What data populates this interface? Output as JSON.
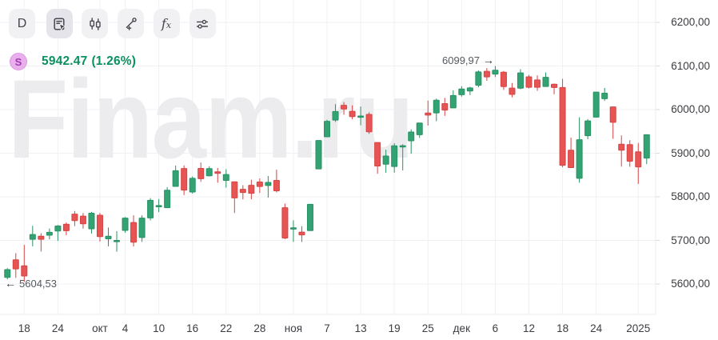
{
  "toolbar": {
    "timeframe_label": "D",
    "fx_label": "f",
    "fx_sub": "x",
    "buttons": [
      "timeframe-daily",
      "object-tree",
      "chart-style-candles",
      "draw-trendline",
      "indicators-fx",
      "chart-settings"
    ]
  },
  "quote": {
    "symbol_badge": "S",
    "price": "5942.47",
    "change": "(1.26%)",
    "price_color": "#0a9160",
    "badge_color": "#e9aeec"
  },
  "watermark": "Finam.ru",
  "chart_data": {
    "type": "candlestick",
    "title": "S daily candlestick chart",
    "last_price": 5942.47,
    "change_percent": 1.26,
    "ylim": [
      5530,
      6250
    ],
    "grid": true,
    "y_axis_side": "right",
    "colors": {
      "up_fill": "#34a374",
      "up_border": "#289263",
      "down_fill": "#e75454",
      "down_border": "#d64444",
      "grid": "#f1f1f4",
      "border": "#ececef",
      "tick": "#dadade"
    },
    "high_marker": {
      "label": "6099,97",
      "arrow": "→",
      "value": 6099.97
    },
    "low_marker": {
      "label": "5604,53",
      "arrow": "←",
      "value": 5604.53
    },
    "y_ticks": [
      {
        "value": 6200,
        "label": "6200,00"
      },
      {
        "value": 6100,
        "label": "6100,00"
      },
      {
        "value": 6000,
        "label": "6000,00"
      },
      {
        "value": 5900,
        "label": "5900,00"
      },
      {
        "value": 5800,
        "label": "5800,00"
      },
      {
        "value": 5700,
        "label": "5700,00"
      },
      {
        "value": 5600,
        "label": "5600,00"
      }
    ],
    "x_ticks": [
      {
        "index": 2,
        "label": "18"
      },
      {
        "index": 6,
        "label": "24"
      },
      {
        "index": 11,
        "label": "окт"
      },
      {
        "index": 14,
        "label": "4"
      },
      {
        "index": 18,
        "label": "10"
      },
      {
        "index": 22,
        "label": "16"
      },
      {
        "index": 26,
        "label": "22"
      },
      {
        "index": 30,
        "label": "28"
      },
      {
        "index": 34,
        "label": "ноя"
      },
      {
        "index": 38,
        "label": "7"
      },
      {
        "index": 42,
        "label": "13"
      },
      {
        "index": 46,
        "label": "19"
      },
      {
        "index": 50,
        "label": "25"
      },
      {
        "index": 54,
        "label": "дек"
      },
      {
        "index": 58,
        "label": "6"
      },
      {
        "index": 62,
        "label": "12"
      },
      {
        "index": 66,
        "label": "18"
      },
      {
        "index": 70,
        "label": "24"
      },
      {
        "index": 75,
        "label": "2025"
      }
    ],
    "candles": [
      [
        "2024-09-16",
        5615.21,
        5636.27,
        5610.52,
        5633.09
      ],
      [
        "2024-09-17",
        5655.51,
        5670.81,
        5614.05,
        5634.58
      ],
      [
        "2024-09-18",
        5641.68,
        5689.75,
        5604.53,
        5618.26
      ],
      [
        "2024-09-19",
        5702.63,
        5733.57,
        5686.42,
        5713.64
      ],
      [
        "2024-09-20",
        5709.63,
        5716.7,
        5674.49,
        5702.55
      ],
      [
        "2024-09-23",
        5711.85,
        5727.18,
        5702.46,
        5718.57
      ],
      [
        "2024-09-24",
        5721.49,
        5735.32,
        5698.92,
        5732.93
      ],
      [
        "2024-09-25",
        5737.06,
        5741.03,
        5711.76,
        5722.26
      ],
      [
        "2024-09-26",
        5760.21,
        5767.37,
        5732.89,
        5745.37
      ],
      [
        "2024-09-27",
        5755.63,
        5762.99,
        5726.97,
        5738.17
      ],
      [
        "2024-09-30",
        5726.51,
        5765.14,
        5715.82,
        5762.48
      ],
      [
        "2024-10-01",
        5757.73,
        5763.06,
        5697.26,
        5708.75
      ],
      [
        "2024-10-02",
        5703.76,
        5729.63,
        5686.44,
        5709.54
      ],
      [
        "2024-10-03",
        5698.26,
        5721.35,
        5674.0,
        5699.94
      ],
      [
        "2024-10-04",
        5722.84,
        5753.39,
        5717.64,
        5751.07
      ],
      [
        "2024-10-07",
        5741.03,
        5757.6,
        5685.99,
        5695.94
      ],
      [
        "2024-10-08",
        5706.61,
        5757.6,
        5696.51,
        5751.13
      ],
      [
        "2024-10-09",
        5751.6,
        5796.84,
        5745.92,
        5792.04
      ],
      [
        "2024-10-10",
        5778.86,
        5794.95,
        5764.77,
        5780.05
      ],
      [
        "2024-10-11",
        5775.08,
        5822.13,
        5775.08,
        5815.03
      ],
      [
        "2024-10-14",
        5823.93,
        5871.41,
        5823.93,
        5859.85
      ],
      [
        "2024-10-15",
        5864.97,
        5871.98,
        5804.08,
        5815.26
      ],
      [
        "2024-10-16",
        5810.95,
        5846.6,
        5807.68,
        5842.47
      ],
      [
        "2024-10-17",
        5865.25,
        5878.46,
        5834.23,
        5841.47
      ],
      [
        "2024-10-18",
        5848.23,
        5870.02,
        5846.73,
        5864.67
      ],
      [
        "2024-10-21",
        5857.29,
        5866.01,
        5832.3,
        5853.98
      ],
      [
        "2024-10-22",
        5837.62,
        5863.29,
        5821.04,
        5851.2
      ],
      [
        "2024-10-23",
        5834.35,
        5834.35,
        5762.75,
        5797.42
      ],
      [
        "2024-10-24",
        5817.23,
        5826.69,
        5794.19,
        5809.86
      ],
      [
        "2024-10-25",
        5826.27,
        5839.24,
        5794.31,
        5808.12
      ],
      [
        "2024-10-28",
        5833.93,
        5842.03,
        5808.96,
        5823.52
      ],
      [
        "2024-10-29",
        5825.98,
        5847.56,
        5798.1,
        5832.92
      ],
      [
        "2024-10-30",
        5837.52,
        5862.23,
        5809.98,
        5813.67
      ],
      [
        "2024-10-31",
        5775.08,
        5784.43,
        5702.81,
        5705.45
      ],
      [
        "2024-11-01",
        5728.65,
        5746.12,
        5696.52,
        5728.8
      ],
      [
        "2024-11-04",
        5719.14,
        5732.55,
        5696.23,
        5712.69
      ],
      [
        "2024-11-05",
        5722.45,
        5783.45,
        5722.45,
        5782.76
      ],
      [
        "2024-11-06",
        5864.07,
        5930.05,
        5864.07,
        5929.04
      ],
      [
        "2024-11-07",
        5937.56,
        5976.77,
        5937.56,
        5973.1
      ],
      [
        "2024-11-08",
        5975.82,
        6012.45,
        5971.79,
        5995.54
      ],
      [
        "2024-11-11",
        6009.93,
        6017.31,
        5988.31,
        6001.35
      ],
      [
        "2024-11-12",
        5996.07,
        6009.82,
        5977.72,
        5983.99
      ],
      [
        "2024-11-13",
        5984.48,
        6007.08,
        5963.93,
        5985.38
      ],
      [
        "2024-11-14",
        5989.1,
        5993.88,
        5944.36,
        5949.17
      ],
      [
        "2024-11-15",
        5924.44,
        5924.44,
        5853.01,
        5870.62
      ],
      [
        "2024-11-18",
        5874.66,
        5908.13,
        5855.0,
        5893.62
      ],
      [
        "2024-11-19",
        5869.54,
        5922.97,
        5855.36,
        5916.98
      ],
      [
        "2024-11-20",
        5914.95,
        5920.67,
        5860.56,
        5917.11
      ],
      [
        "2024-11-21",
        5928.43,
        5954.57,
        5898.77,
        5948.71
      ],
      [
        "2024-11-22",
        5942.41,
        5969.72,
        5935.18,
        5969.34
      ],
      [
        "2024-11-25",
        5992.26,
        6020.75,
        5963.36,
        5987.37
      ],
      [
        "2024-11-26",
        5992.47,
        6025.42,
        5973.4,
        6021.63
      ],
      [
        "2024-11-27",
        6013.71,
        6026.98,
        5985.57,
        5998.74
      ],
      [
        "2024-11-29",
        6003.89,
        6044.17,
        6003.89,
        6032.38
      ],
      [
        "2024-12-02",
        6034.2,
        6053.58,
        6029.79,
        6047.15
      ],
      [
        "2024-12-03",
        6042.65,
        6052.33,
        6033.39,
        6049.88
      ],
      [
        "2024-12-04",
        6056.0,
        6089.84,
        6051.25,
        6086.49
      ],
      [
        "2024-12-05",
        6087.82,
        6095.36,
        6066.05,
        6075.11
      ],
      [
        "2024-12-06",
        6081.49,
        6099.97,
        6074.54,
        6090.27
      ],
      [
        "2024-12-09",
        6085.82,
        6088.48,
        6044.99,
        6052.85
      ],
      [
        "2024-12-10",
        6049.42,
        6060.98,
        6027.97,
        6034.91
      ],
      [
        "2024-12-11",
        6049.0,
        6092.62,
        6046.66,
        6084.19
      ],
      [
        "2024-12-12",
        6075.32,
        6079.68,
        6048.4,
        6051.25
      ],
      [
        "2024-12-13",
        6068.1,
        6078.58,
        6043.1,
        6051.09
      ],
      [
        "2024-12-16",
        6052.95,
        6085.15,
        6052.95,
        6074.08
      ],
      [
        "2024-12-17",
        6058.33,
        6059.6,
        6035.2,
        6050.61
      ],
      [
        "2024-12-18",
        6050.77,
        6070.67,
        5867.79,
        5872.16
      ],
      [
        "2024-12-19",
        5906.99,
        5935.62,
        5866.07,
        5867.08
      ],
      [
        "2024-12-20",
        5842.54,
        5982.3,
        5832.3,
        5930.85
      ],
      [
        "2024-12-23",
        5940.17,
        5978.19,
        5931.95,
        5974.07
      ],
      [
        "2024-12-24",
        5982.73,
        6040.1,
        5982.73,
        6040.04
      ],
      [
        "2024-12-26",
        6024.97,
        6049.75,
        6019.89,
        6037.59
      ],
      [
        "2024-12-27",
        6006.17,
        6006.17,
        5932.95,
        5970.84
      ],
      [
        "2024-12-30",
        5920.67,
        5940.79,
        5869.16,
        5906.94
      ],
      [
        "2024-12-31",
        5919.74,
        5929.74,
        5868.86,
        5881.63
      ],
      [
        "2025-01-02",
        5903.26,
        5923.51,
        5829.53,
        5868.55
      ],
      [
        "2025-01-03",
        5888.7,
        5942.47,
        5875.07,
        5942.47
      ]
    ]
  }
}
